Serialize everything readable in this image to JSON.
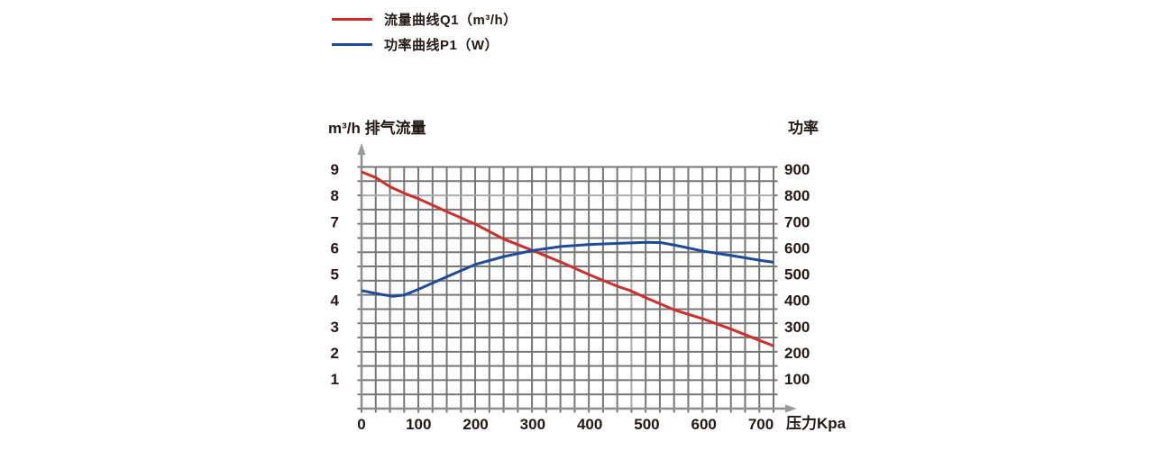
{
  "page": {
    "background": "#ffffff"
  },
  "theme": {
    "text_color": "#231815",
    "grid_color": "#767676",
    "grid_light_color": "#ababab",
    "axis_color": "#8d8d8d",
    "arrow_color": "#9a9a9a"
  },
  "legend": {
    "items": [
      {
        "label": "流量曲线Q1（m³/h）",
        "color": "#ce2f2a"
      },
      {
        "label": "功率曲线P1（W）",
        "color": "#1e4b99"
      }
    ]
  },
  "chart_data": {
    "type": "line",
    "title": "",
    "x_axis": {
      "label": "压力Kpa",
      "min": 0,
      "max": 722,
      "ticks": [
        0,
        100,
        200,
        300,
        400,
        500,
        600,
        700
      ]
    },
    "y_left": {
      "label": "m³/h 排气流量",
      "min": 0,
      "max": 9,
      "ticks": [
        9,
        8,
        7,
        6,
        5,
        4,
        3,
        2,
        1
      ]
    },
    "y_right": {
      "label": "功率",
      "min": 0,
      "max": 900,
      "ticks": [
        900,
        800,
        700,
        600,
        500,
        400,
        300,
        200,
        100
      ]
    },
    "grid": {
      "columns": 29,
      "rows": 17,
      "grid_on": true
    },
    "legend_position": "top-left",
    "series": [
      {
        "name": "流量曲线Q1（m³/h）",
        "axis": "left",
        "unit": "m³/h",
        "color": "#ce2f2a",
        "points": [
          [
            0,
            8.9
          ],
          [
            25,
            8.68
          ],
          [
            50,
            8.33
          ],
          [
            75,
            8.08
          ],
          [
            100,
            7.87
          ],
          [
            150,
            7.38
          ],
          [
            200,
            6.9
          ],
          [
            250,
            6.33
          ],
          [
            300,
            5.9
          ],
          [
            350,
            5.45
          ],
          [
            400,
            4.97
          ],
          [
            450,
            4.52
          ],
          [
            470,
            4.38
          ],
          [
            500,
            4.08
          ],
          [
            550,
            3.62
          ],
          [
            600,
            3.28
          ],
          [
            650,
            2.88
          ],
          [
            700,
            2.45
          ],
          [
            722,
            2.26
          ]
        ]
      },
      {
        "name": "功率曲线P1（W）",
        "axis": "right",
        "unit": "W",
        "color": "#1e4b99",
        "points": [
          [
            0,
            437
          ],
          [
            30,
            424
          ],
          [
            55,
            415
          ],
          [
            75,
            420
          ],
          [
            100,
            442
          ],
          [
            150,
            490
          ],
          [
            200,
            537
          ],
          [
            250,
            567
          ],
          [
            300,
            590
          ],
          [
            350,
            605
          ],
          [
            400,
            613
          ],
          [
            450,
            617
          ],
          [
            500,
            621
          ],
          [
            525,
            620
          ],
          [
            550,
            610
          ],
          [
            600,
            587
          ],
          [
            650,
            570
          ],
          [
            700,
            552
          ],
          [
            722,
            545
          ]
        ]
      }
    ]
  }
}
